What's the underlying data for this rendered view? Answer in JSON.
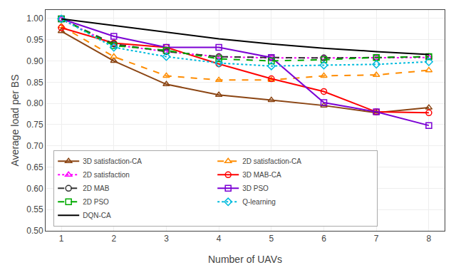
{
  "chart_data": {
    "type": "line",
    "xlabel": "Number of UAVs",
    "ylabel": "Average load per BS",
    "x": [
      1,
      2,
      3,
      4,
      5,
      6,
      7,
      8
    ],
    "series": [
      {
        "name": "3D satisfaction-CA",
        "color": "#8B4513",
        "line_style": "solid",
        "marker": "triangle",
        "values": [
          0.97,
          0.9,
          0.845,
          0.82,
          0.808,
          0.795,
          0.778,
          0.79
        ]
      },
      {
        "name": "2D satisfaction-CA",
        "color": "#FF8C00",
        "line_style": "dashed",
        "marker": "triangle",
        "values": [
          0.982,
          0.91,
          0.865,
          0.855,
          0.855,
          0.865,
          0.867,
          0.878
        ]
      },
      {
        "name": "2D satisfaction",
        "color": "#FF00FF",
        "line_style": "dotted",
        "marker": "triangle",
        "values": [
          0.998,
          0.938,
          0.922,
          0.91,
          0.907,
          0.907,
          0.907,
          0.908
        ]
      },
      {
        "name": "3D MAB-CA",
        "color": "#FF0000",
        "line_style": "solid",
        "marker": "circle",
        "values": [
          0.978,
          0.942,
          0.932,
          0.893,
          0.858,
          0.828,
          0.78,
          0.778
        ]
      },
      {
        "name": "2D MAB",
        "color": "#333333",
        "line_style": "dashed",
        "marker": "circle",
        "values": [
          0.999,
          0.94,
          0.922,
          0.91,
          0.908,
          0.907,
          0.908,
          0.91
        ]
      },
      {
        "name": "3D PSO",
        "color": "#7B00D4",
        "line_style": "solid",
        "marker": "square",
        "values": [
          0.999,
          0.958,
          0.932,
          0.932,
          0.908,
          0.802,
          0.78,
          0.748
        ]
      },
      {
        "name": "2D PSO",
        "color": "#00AA00",
        "line_style": "dashed",
        "marker": "square",
        "values": [
          0.999,
          0.936,
          0.925,
          0.905,
          0.9,
          0.903,
          0.908,
          0.91
        ]
      },
      {
        "name": "Q-learning",
        "color": "#00BBDD",
        "line_style": "dotted",
        "marker": "diamond",
        "values": [
          0.999,
          0.932,
          0.91,
          0.895,
          0.888,
          0.89,
          0.892,
          0.898
        ]
      },
      {
        "name": "DQN-CA",
        "color": "#000000",
        "line_style": "solid",
        "marker": "none",
        "values": [
          0.999,
          0.983,
          0.967,
          0.952,
          0.94,
          0.93,
          0.922,
          0.915
        ]
      }
    ],
    "xlim": [
      0.7,
      8.3
    ],
    "ylim": [
      0.5,
      1.02
    ],
    "xticks": [
      1,
      2,
      3,
      4,
      5,
      6,
      7,
      8
    ],
    "yticks": [
      {
        "value": 0.5,
        "label": "0.50"
      },
      {
        "value": 0.55,
        "label": "0.55"
      },
      {
        "value": 0.6,
        "label": "0.60"
      },
      {
        "value": 0.65,
        "label": "0.65"
      },
      {
        "value": 0.7,
        "label": "0.70"
      },
      {
        "value": 0.75,
        "label": "0.75"
      },
      {
        "value": 0.8,
        "label": "0.80"
      },
      {
        "value": 0.85,
        "label": "0.85"
      },
      {
        "value": 0.9,
        "label": "0.90"
      },
      {
        "value": 0.95,
        "label": "0.95"
      },
      {
        "value": 1.0,
        "label": "1.00"
      }
    ],
    "grid": true,
    "legend": "lower left"
  }
}
